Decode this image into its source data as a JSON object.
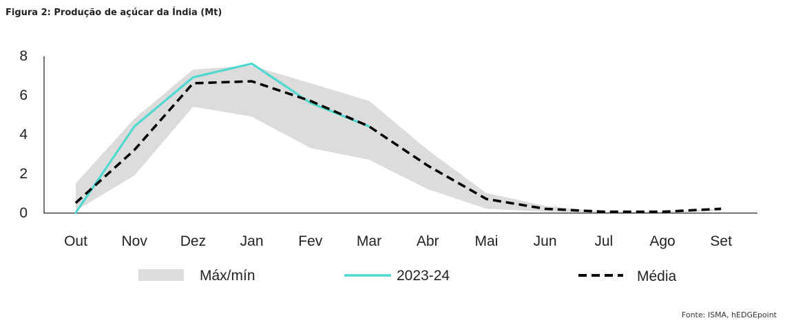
{
  "figure_title": "Figura 2: Produção de açúcar da Índia (Mt)",
  "source": "Fonte: ISMA, hEDGEpoint",
  "colors": {
    "band": "#dcdcdc",
    "current": "#4fd8cf",
    "average": "#000000",
    "axis": "#222222"
  },
  "chart_data": {
    "type": "line",
    "title": "",
    "xlabel": "",
    "ylabel": "",
    "categories": [
      "Out",
      "Nov",
      "Dez",
      "Jan",
      "Fev",
      "Mar",
      "Abr",
      "Mai",
      "Jun",
      "Jul",
      "Ago",
      "Set"
    ],
    "y_ticks": [
      "0",
      "2",
      "4",
      "6",
      "8"
    ],
    "ylim": [
      0,
      8
    ],
    "grid": false,
    "legend_position": "bottom",
    "band": {
      "name": "Máx/mín",
      "max": [
        1.5,
        4.8,
        7.3,
        7.5,
        6.6,
        5.7,
        3.2,
        1.0,
        0.35,
        0.05,
        0.05,
        0.2
      ],
      "min": [
        0.1,
        1.9,
        5.4,
        4.9,
        3.3,
        2.7,
        1.2,
        0.2,
        0.05,
        0.0,
        0.0,
        0.1
      ]
    },
    "series": [
      {
        "name": "2023-24",
        "values": [
          0.0,
          4.4,
          6.9,
          7.6,
          5.6,
          4.4,
          null,
          null,
          null,
          null,
          null,
          null
        ]
      },
      {
        "name": "Média",
        "values": [
          0.5,
          3.2,
          6.6,
          6.7,
          5.7,
          4.4,
          2.4,
          0.7,
          0.2,
          0.05,
          0.05,
          0.2
        ]
      }
    ]
  }
}
